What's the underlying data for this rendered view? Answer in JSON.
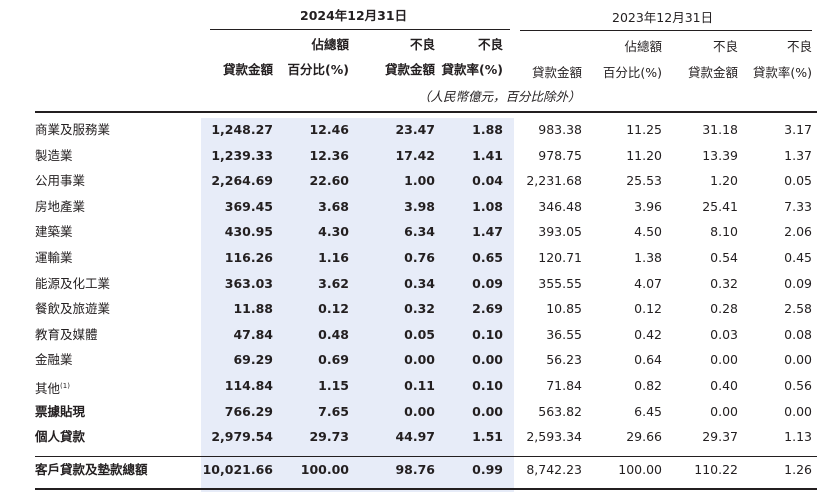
{
  "header": {
    "year_2024": "2024年12月31日",
    "year_2023": "2023年12月31日",
    "col_loan_amount": "貸款金額",
    "col_pct_top": "佔總額",
    "col_pct_bottom": "百分比(%)",
    "col_npl_top": "不良",
    "col_npl_bottom": "貸款金額",
    "col_nplr_top": "不良",
    "col_nplr_bottom": "貸款率(%)",
    "unit_note": "（人民幣億元，百分比除外）"
  },
  "rows": [
    {
      "label": "商業及服務業",
      "sup": "",
      "v": [
        "1,248.27",
        "12.46",
        "23.47",
        "1.88",
        "983.38",
        "11.25",
        "31.18",
        "3.17"
      ]
    },
    {
      "label": "製造業",
      "sup": "",
      "v": [
        "1,239.33",
        "12.36",
        "17.42",
        "1.41",
        "978.75",
        "11.20",
        "13.39",
        "1.37"
      ]
    },
    {
      "label": "公用事業",
      "sup": "",
      "v": [
        "2,264.69",
        "22.60",
        "1.00",
        "0.04",
        "2,231.68",
        "25.53",
        "1.20",
        "0.05"
      ]
    },
    {
      "label": "房地產業",
      "sup": "",
      "v": [
        "369.45",
        "3.68",
        "3.98",
        "1.08",
        "346.48",
        "3.96",
        "25.41",
        "7.33"
      ]
    },
    {
      "label": "建築業",
      "sup": "",
      "v": [
        "430.95",
        "4.30",
        "6.34",
        "1.47",
        "393.05",
        "4.50",
        "8.10",
        "2.06"
      ]
    },
    {
      "label": "運輸業",
      "sup": "",
      "v": [
        "116.26",
        "1.16",
        "0.76",
        "0.65",
        "120.71",
        "1.38",
        "0.54",
        "0.45"
      ]
    },
    {
      "label": "能源及化工業",
      "sup": "",
      "v": [
        "363.03",
        "3.62",
        "0.34",
        "0.09",
        "355.55",
        "4.07",
        "0.32",
        "0.09"
      ]
    },
    {
      "label": "餐飲及旅遊業",
      "sup": "",
      "v": [
        "11.88",
        "0.12",
        "0.32",
        "2.69",
        "10.85",
        "0.12",
        "0.28",
        "2.58"
      ]
    },
    {
      "label": "教育及媒體",
      "sup": "",
      "v": [
        "47.84",
        "0.48",
        "0.05",
        "0.10",
        "36.55",
        "0.42",
        "0.03",
        "0.08"
      ]
    },
    {
      "label": "金融業",
      "sup": "",
      "v": [
        "69.29",
        "0.69",
        "0.00",
        "0.00",
        "56.23",
        "0.64",
        "0.00",
        "0.00"
      ]
    },
    {
      "label": "其他",
      "sup": "(1)",
      "v": [
        "114.84",
        "1.15",
        "0.11",
        "0.10",
        "71.84",
        "0.82",
        "0.40",
        "0.56"
      ]
    },
    {
      "label": "票據貼現",
      "sup": "",
      "bold": true,
      "v": [
        "766.29",
        "7.65",
        "0.00",
        "0.00",
        "563.82",
        "6.45",
        "0.00",
        "0.00"
      ]
    },
    {
      "label": "個人貸款",
      "sup": "",
      "bold": true,
      "v": [
        "2,979.54",
        "29.73",
        "44.97",
        "1.51",
        "2,593.34",
        "29.66",
        "29.37",
        "1.13"
      ]
    }
  ],
  "total": {
    "label": "客戶貸款及墊款總額",
    "v": [
      "10,021.66",
      "100.00",
      "98.76",
      "0.99",
      "8,742.23",
      "100.00",
      "110.22",
      "1.26"
    ]
  }
}
